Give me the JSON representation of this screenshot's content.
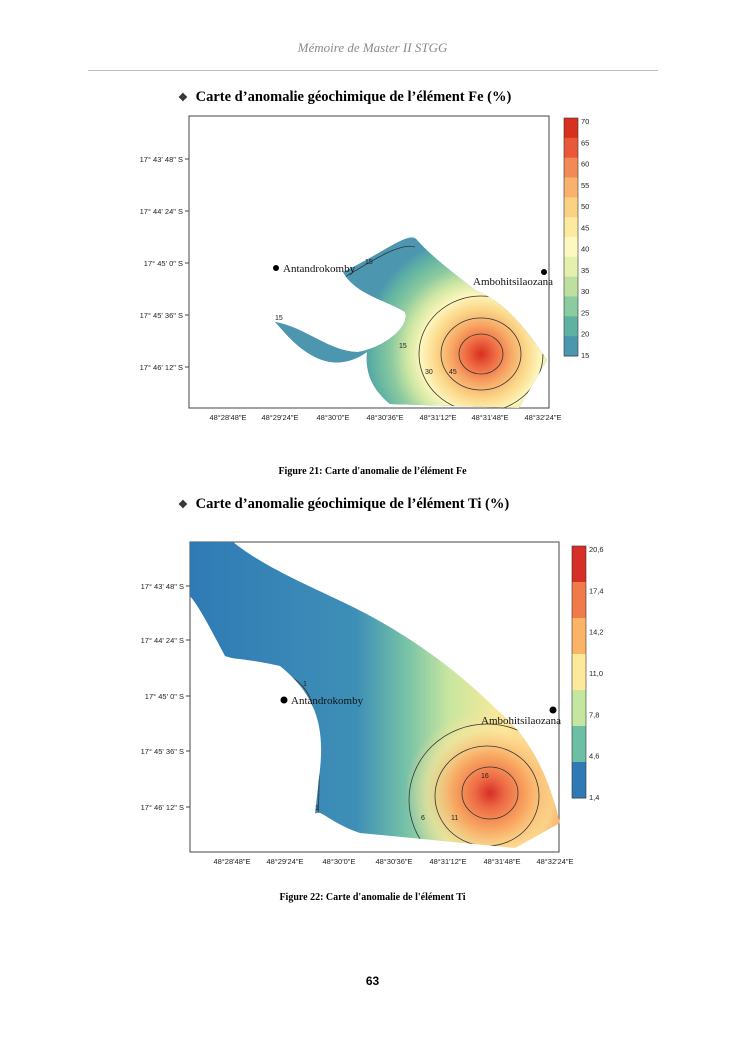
{
  "header": {
    "title": "Mémoire de Master II STGG"
  },
  "sections": [
    {
      "title": "Carte d’anomalie géochimique de l’élément Fe (%)"
    },
    {
      "title": "Carte d’anomalie géochimique de l’élément Ti (%)"
    }
  ],
  "maps": [
    {
      "y_labels": [
        "17° 43' 48\" S",
        "17° 44' 24\" S",
        "17° 45' 0\" S",
        "17° 45' 36\" S",
        "17° 46' 12\" S"
      ],
      "x_labels": [
        "48°28'48\"E",
        "48°29'24\"E",
        "48°30'0\"E",
        "48°30'36\"E",
        "48°31'12\"E",
        "48°31'48\"E",
        "48°32'24\"E"
      ],
      "places": [
        "Antandrokomby",
        "Ambohitsilaozana"
      ],
      "contour_labels": [
        "15",
        "15",
        "15",
        "30",
        "45"
      ],
      "legend": [
        "70",
        "65",
        "60",
        "55",
        "50",
        "45",
        "40",
        "35",
        "30",
        "25",
        "20",
        "15"
      ],
      "legend_colors": [
        "#d7301f",
        "#e9583b",
        "#f28a57",
        "#f8b26e",
        "#fbd184",
        "#fde9a0",
        "#fdf8c0",
        "#e3f0ae",
        "#bde0a0",
        "#8ccaa0",
        "#5fb2a2",
        "#4c96b0"
      ]
    },
    {
      "y_labels": [
        "17° 43' 48\" S",
        "17° 44' 24\" S",
        "17° 45' 0\" S",
        "17° 45' 36\" S",
        "17° 46' 12\" S"
      ],
      "x_labels": [
        "48°28'48\"E",
        "48°29'24\"E",
        "48°30'0\"E",
        "48°30'36\"E",
        "48°31'12\"E",
        "48°31'48\"E",
        "48°32'24\"E"
      ],
      "places": [
        "Antandrokomby",
        "Ambohitsilaozana"
      ],
      "contour_labels": [
        "1",
        "1",
        "6",
        "11",
        "16"
      ],
      "legend": [
        "20,6",
        "17,4",
        "14,2",
        "11,0",
        "7,8",
        "4,6",
        "1,4"
      ],
      "legend_colors": [
        "#d62f27",
        "#f07a4a",
        "#fbb466",
        "#fde99a",
        "#c4e6a0",
        "#6cbfa5",
        "#2f7ab5"
      ]
    }
  ],
  "captions": [
    "Figure 21: Carte d'anomalie de l’élément Fe",
    "Figure 22: Carte d'anomalie de l'élément Ti"
  ],
  "page_number": "63"
}
